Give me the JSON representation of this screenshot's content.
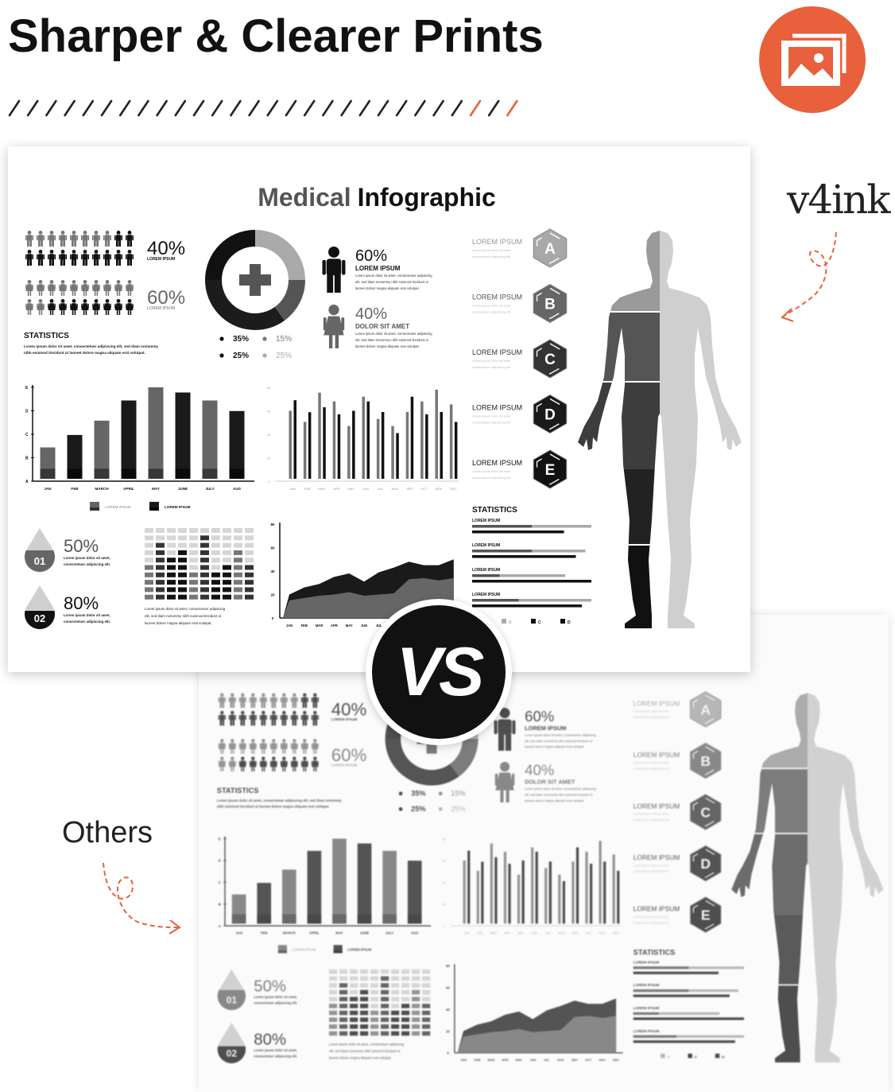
{
  "header": {
    "title": "Sharper & Clearer Prints",
    "accent_color": "#E8603C",
    "icon": "image-gallery-icon",
    "slash_count": 28,
    "orange_slashes": [
      25,
      27
    ]
  },
  "labels": {
    "brand": "v4ink",
    "others": "Others",
    "vs": "VS"
  },
  "infographic": {
    "title_light": "Medical",
    "title_bold": "Infographic",
    "people": [
      {
        "value": "40%",
        "label": "LOREM IPSUM",
        "icon": "man",
        "total": 20,
        "dark": 12
      },
      {
        "value": "60%",
        "label": "LOREM IPSUM",
        "icon": "woman",
        "total": 20,
        "dark": 8
      }
    ],
    "statistics": {
      "heading": "STATISTICS",
      "lines": [
        "Lorem ipsum dolor sit amet, consectetuer adipiscing elit, sed diam nonummy",
        "nibh euismod tincidunt ut laoreet dolore magna aliquam erat volutpat."
      ]
    },
    "donut": {
      "icon": "plus-icon",
      "slices": [
        {
          "value": 25,
          "color": "#aaaaaa"
        },
        {
          "value": 15,
          "color": "#555555"
        },
        {
          "value": 35,
          "color": "#1c1c1c"
        },
        {
          "value": 25,
          "color": "#111111"
        }
      ],
      "legend": [
        {
          "label": "35%",
          "color": "#111111"
        },
        {
          "label": "15%",
          "color": "#777777"
        },
        {
          "label": "25%",
          "color": "#111111"
        },
        {
          "label": "25%",
          "color": "#aaaaaa"
        }
      ]
    },
    "gender": [
      {
        "value": "60%",
        "label": "LOREM IPSUM",
        "icon": "man",
        "lines": [
          "Lorem ipsum dolor sit amet, consectetuer adipiscing",
          "elit, sed diam nonummy nibh euismod tincidunt ut",
          "laoreet dolore magna aliquam erat volutpat."
        ]
      },
      {
        "value": "40%",
        "label": "DOLOR SIT AMET",
        "icon": "woman",
        "lines": [
          "Lorem ipsum dolor sit amet, consectetuer adipiscing",
          "elit, sed diam nonummy nibh euismod tincidunt ut",
          "laoreet dolore magna aliquam erat volutpat."
        ]
      }
    ],
    "drops": [
      {
        "number": "01",
        "value": "50%",
        "color": "#666666",
        "lines": [
          "Lorem ipsum dolor sit amet,",
          "consectetuer adipiscing elit."
        ]
      },
      {
        "number": "02",
        "value": "80%",
        "color": "#111111",
        "lines": [
          "Lorem ipsum dolor sit amet,",
          "consectetuer adipiscing elit."
        ]
      }
    ],
    "grid": {
      "levels": [
        [
          0,
          0,
          0,
          0,
          0,
          0,
          0,
          0,
          0,
          0
        ],
        [
          0,
          0,
          0,
          0,
          0,
          2,
          0,
          0,
          0,
          0
        ],
        [
          0,
          2,
          0,
          0,
          0,
          2,
          0,
          0,
          0,
          0
        ],
        [
          0,
          2,
          0,
          3,
          0,
          2,
          0,
          0,
          1,
          0
        ],
        [
          0,
          2,
          3,
          3,
          0,
          2,
          0,
          0,
          1,
          0
        ],
        [
          1,
          2,
          3,
          3,
          0,
          2,
          0,
          3,
          1,
          2
        ],
        [
          1,
          2,
          3,
          3,
          1,
          2,
          3,
          3,
          1,
          2
        ],
        [
          1,
          2,
          3,
          3,
          1,
          2,
          3,
          3,
          1,
          2
        ],
        [
          1,
          2,
          3,
          3,
          1,
          2,
          3,
          3,
          1,
          2
        ],
        [
          1,
          2,
          3,
          3,
          1,
          2,
          3,
          3,
          1,
          2
        ]
      ],
      "lines": [
        "Lorem ipsum dolor sit amet, consectetuer adipiscing",
        "elit, sed diam nonummy nibh euismod tincidunt ut",
        "laoreet dolore magna aliquam erat volutpat."
      ]
    },
    "hexagons": [
      {
        "letter": "A",
        "label": "LOREM IPSUM",
        "color": "#a8a8a8",
        "lines": [
          "Lorem ipsum dolor sit amet",
          "consectetuer adipiscing elit"
        ]
      },
      {
        "letter": "B",
        "label": "LOREM IPSUM",
        "color": "#666666",
        "lines": [
          "Lorem ipsum dolor sit amet",
          "consectetuer adipiscing elit"
        ]
      },
      {
        "letter": "C",
        "label": "LOREM IPSUM",
        "color": "#333333",
        "lines": [
          "Lorem ipsum dolor sit amet",
          "consectetuer adipiscing elit"
        ]
      },
      {
        "letter": "D",
        "label": "LOREM IPSUM",
        "color": "#1a1a1a",
        "lines": [
          "Lorem ipsum dolor sit amet",
          "consectetuer adipiscing elit"
        ]
      },
      {
        "letter": "E",
        "label": "LOREM IPSUM",
        "color": "#111111",
        "lines": [
          "Lorem ipsum dolor sit amet",
          "consectetuer adipiscing elit"
        ]
      }
    ],
    "stat_bars": {
      "heading": "STATISTICS",
      "rows": [
        {
          "label": "LOREM IPSUM",
          "dark": 0.5,
          "light": 1.0,
          "black": 0.77
        },
        {
          "label": "LOREM IPSUM",
          "dark": 0.5,
          "light": 0.95,
          "black": 0.87
        },
        {
          "label": "LOREM IPSUM",
          "dark": 0.23,
          "light": 0.78,
          "black": 1.0
        },
        {
          "label": "LOREM IPSUM",
          "dark": 0.39,
          "light": 1.0,
          "black": 0.92
        }
      ],
      "legend": [
        {
          "label": "B",
          "color": "#aaaaaa"
        },
        {
          "label": "C",
          "color": "#111111"
        },
        {
          "label": "D",
          "color": "#111111"
        }
      ]
    },
    "body_figure": {
      "left_colors": [
        "#9a9a9a",
        "#555555",
        "#3d3d3d",
        "#222222",
        "#111111"
      ],
      "right_color": "#cfcfcf"
    }
  },
  "chart_data": [
    {
      "type": "bar",
      "categories": [
        "JAN",
        "FEB",
        "MARCH",
        "APRIL",
        "MAY",
        "JUNE",
        "JULY",
        "AUG"
      ],
      "y_ticks": [
        "A",
        "B",
        "C",
        "D",
        "E"
      ],
      "values": [
        1.44,
        1.97,
        2.58,
        3.44,
        4.0,
        3.78,
        3.44,
        2.99
      ],
      "bar_series": [
        0,
        1,
        0,
        1,
        0,
        1,
        0,
        1
      ],
      "series": [
        {
          "name": "LOREM IPSUM",
          "color": "#666666"
        },
        {
          "name": "LOREM IPSUM",
          "color": "#1a1a1a"
        }
      ],
      "legend": "bottom"
    },
    {
      "type": "bar",
      "categories": [
        "JAN",
        "FEB",
        "MAR",
        "APR",
        "MAY",
        "JUN",
        "JUL",
        "AUG",
        "SEP",
        "OCT",
        "NOV",
        "DEC"
      ],
      "y_ticks": [
        "0",
        "20",
        "40",
        "60",
        "80"
      ],
      "ylim": [
        0,
        80
      ],
      "series": [
        {
          "color": "#777777",
          "values": [
            60,
            50.5,
            75.5,
            68,
            47,
            72,
            53,
            47,
            59,
            68,
            78,
            65.5
          ]
        },
        {
          "color": "#111111",
          "values": [
            69,
            58.8,
            63,
            57,
            60,
            68,
            59,
            41,
            72,
            57,
            59,
            50.5
          ]
        }
      ]
    },
    {
      "type": "area",
      "categories": [
        "JAN",
        "FEB",
        "MAR",
        "APR",
        "MAY",
        "JUN",
        "JUL",
        "AUG",
        "SEP",
        "OCT",
        "NOV",
        "DEC"
      ],
      "y_ticks": [
        "0",
        "20",
        "40",
        "60",
        "80"
      ],
      "ylim": [
        0,
        80
      ],
      "series": [
        {
          "color": "#1a1a1a",
          "values": [
            20,
            26,
            29,
            35,
            38,
            31,
            39,
            43,
            48,
            45,
            45,
            50
          ]
        },
        {
          "color": "#666666",
          "values": [
            15,
            17,
            19,
            20,
            22,
            19,
            20,
            21,
            33,
            34,
            32,
            34
          ]
        }
      ]
    }
  ]
}
